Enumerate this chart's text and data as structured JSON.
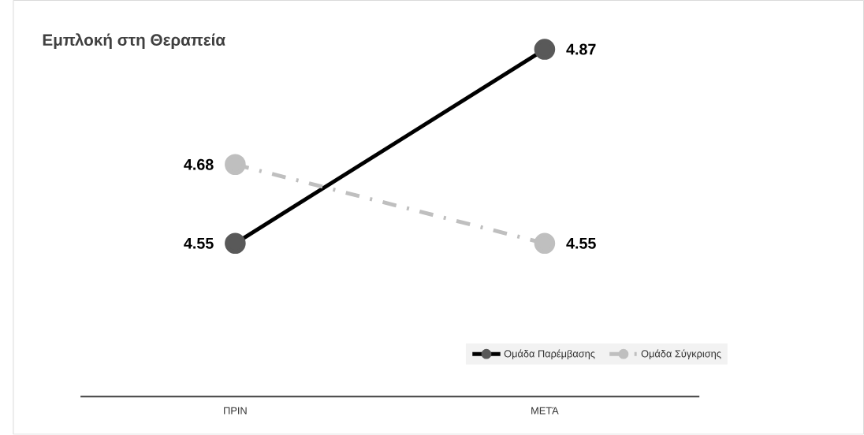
{
  "chart_data": {
    "type": "line",
    "title": "Εμπλοκή στη Θεραπεία",
    "categories": [
      "ΠΡΙΝ",
      "ΜΕΤΆ"
    ],
    "series": [
      {
        "name": "Ομάδα Παρέμβασης",
        "color": "#000000",
        "colors": [
          "#595959",
          "#595959"
        ],
        "line_style": "solid",
        "values": [
          4.55,
          4.87
        ]
      },
      {
        "name": "Ομάδα Σύγκρισης",
        "color": "#bfbfbf",
        "colors": [
          "#bfbfbf",
          "#bfbfbf"
        ],
        "line_style": "dashed",
        "values": [
          4.68,
          4.55
        ]
      }
    ],
    "data_labels": true,
    "legend": "bottom right",
    "marker": "circle",
    "tick_labels": "x"
  }
}
